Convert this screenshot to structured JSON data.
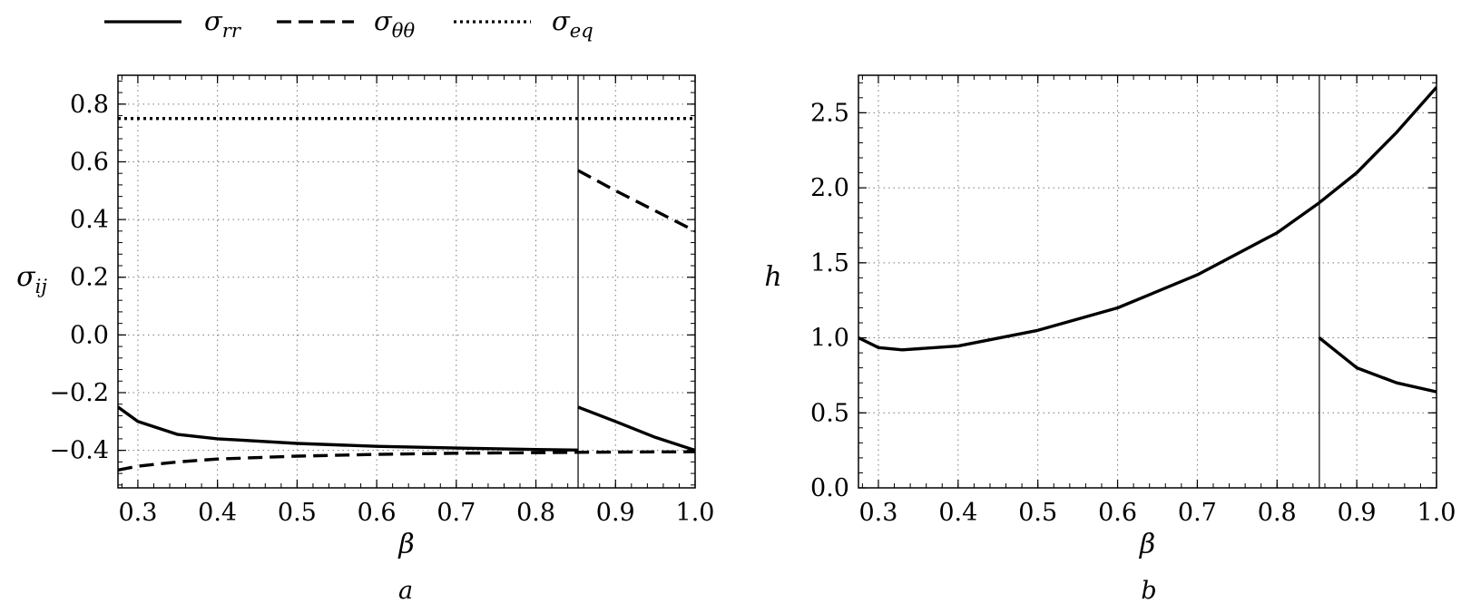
{
  "legend": [
    {
      "label": "σ",
      "sub": "rr",
      "style": "solid"
    },
    {
      "label": "σ",
      "sub": "θθ",
      "style": "dashed"
    },
    {
      "label": "σ",
      "sub": "eq",
      "style": "dotted"
    }
  ],
  "chart_data": [
    {
      "type": "line",
      "panel_label": "a",
      "xlabel": "β",
      "ylabel": "σ",
      "ylabel_sub": "ij",
      "xlim": [
        0.275,
        1.0
      ],
      "ylim": [
        -0.53,
        0.9
      ],
      "xticks": [
        0.3,
        0.4,
        0.5,
        0.6,
        0.7,
        0.8,
        0.9,
        1.0
      ],
      "xtick_labels": [
        "0.3",
        "0.4",
        "0.5",
        "0.6",
        "0.7",
        "0.8",
        "0.9",
        "1.0"
      ],
      "yticks": [
        -0.4,
        -0.2,
        0.0,
        0.2,
        0.4,
        0.6,
        0.8
      ],
      "ytick_labels": [
        "−0.4",
        "−0.2",
        "0.0",
        "0.2",
        "0.4",
        "0.6",
        "0.8"
      ],
      "grid": true,
      "vline": 0.853,
      "series": [
        {
          "name": "σ_rr",
          "style": "solid",
          "x": [
            0.275,
            0.3,
            0.35,
            0.4,
            0.5,
            0.6,
            0.7,
            0.8,
            0.853
          ],
          "y": [
            -0.25,
            -0.3,
            -0.345,
            -0.36,
            -0.376,
            -0.386,
            -0.392,
            -0.397,
            -0.399
          ]
        },
        {
          "name": "σ_rr",
          "style": "solid",
          "x": [
            0.853,
            0.9,
            0.95,
            1.0
          ],
          "y": [
            -0.25,
            -0.3,
            -0.355,
            -0.4
          ]
        },
        {
          "name": "σ_θθ",
          "style": "dashed",
          "x": [
            0.275,
            0.3,
            0.35,
            0.4,
            0.5,
            0.6,
            0.7,
            0.8,
            0.9,
            1.0
          ],
          "y": [
            -0.468,
            -0.455,
            -0.44,
            -0.43,
            -0.42,
            -0.414,
            -0.41,
            -0.408,
            -0.406,
            -0.405
          ]
        },
        {
          "name": "σ_θθ",
          "style": "dashed",
          "x": [
            0.853,
            0.9,
            0.95,
            1.0
          ],
          "y": [
            0.57,
            0.5,
            0.43,
            0.36
          ]
        },
        {
          "name": "σ_eq",
          "style": "dotted",
          "x": [
            0.275,
            1.0
          ],
          "y": [
            0.75,
            0.75
          ]
        }
      ]
    },
    {
      "type": "line",
      "panel_label": "b",
      "xlabel": "β",
      "ylabel": "h",
      "ylabel_sub": "",
      "xlim": [
        0.275,
        1.0
      ],
      "ylim": [
        0.0,
        2.75
      ],
      "xticks": [
        0.3,
        0.4,
        0.5,
        0.6,
        0.7,
        0.8,
        0.9,
        1.0
      ],
      "xtick_labels": [
        "0.3",
        "0.4",
        "0.5",
        "0.6",
        "0.7",
        "0.8",
        "0.9",
        "1.0"
      ],
      "yticks": [
        0.0,
        0.5,
        1.0,
        1.5,
        2.0,
        2.5
      ],
      "ytick_labels": [
        "0.0",
        "0.5",
        "1.0",
        "1.5",
        "2.0",
        "2.5"
      ],
      "grid": true,
      "vline": 0.853,
      "series": [
        {
          "name": "h",
          "style": "solid",
          "x": [
            0.275,
            0.3,
            0.33,
            0.4,
            0.5,
            0.6,
            0.7,
            0.8,
            0.853,
            0.9,
            0.95,
            1.0
          ],
          "y": [
            1.0,
            0.935,
            0.92,
            0.945,
            1.05,
            1.2,
            1.42,
            1.7,
            1.9,
            2.1,
            2.37,
            2.67
          ]
        },
        {
          "name": "h",
          "style": "solid",
          "x": [
            0.853,
            0.9,
            0.95,
            1.0
          ],
          "y": [
            1.0,
            0.8,
            0.7,
            0.64
          ]
        }
      ]
    }
  ]
}
